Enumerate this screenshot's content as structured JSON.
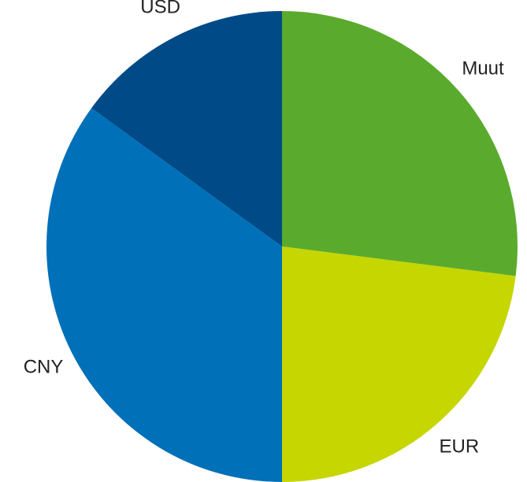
{
  "chart_data": {
    "type": "pie",
    "categories": [
      "Muut",
      "EUR",
      "CNY",
      "USD"
    ],
    "values": [
      27,
      23,
      35,
      15
    ],
    "colors": [
      "#5aab2d",
      "#c5d600",
      "#0070b8",
      "#004a87"
    ],
    "start_angle": 0,
    "direction": "clockwise"
  }
}
